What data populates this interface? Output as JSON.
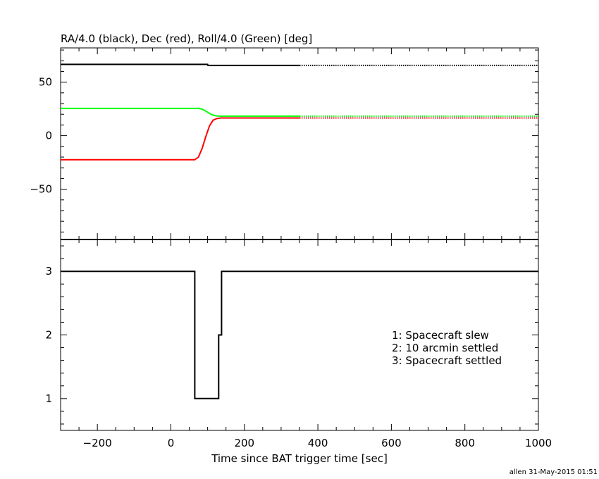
{
  "chart_data": [
    {
      "type": "line",
      "title": "RA/4.0 (black), Dec (red), Roll/4.0 (Green) [deg]",
      "xlim": [
        -300,
        1000
      ],
      "ylim": [
        -97,
        82
      ],
      "yticks": [
        -50,
        0,
        50
      ],
      "grid": false,
      "series": [
        {
          "name": "RA/4.0",
          "color": "#000000",
          "x": [
            -300,
            100,
            101,
            350
          ],
          "y": [
            66.6,
            66.6,
            65.6,
            65.6
          ],
          "dotted_continuation": {
            "x": [
              350,
              1000
            ],
            "y": [
              65.6,
              65.6
            ]
          }
        },
        {
          "name": "Dec",
          "color": "#ff0000",
          "x": [
            -300,
            65,
            75,
            85,
            95,
            105,
            115,
            125,
            135,
            350
          ],
          "y": [
            -22.5,
            -22.5,
            -20,
            -12,
            -1,
            9,
            14.5,
            16,
            16.5,
            16.5
          ],
          "dotted_continuation": {
            "x": [
              350,
              1000
            ],
            "y": [
              16.5,
              16.5
            ]
          }
        },
        {
          "name": "Roll/4.0",
          "color": "#00ff00",
          "x": [
            -300,
            75,
            85,
            95,
            105,
            115,
            125,
            135,
            350
          ],
          "y": [
            25.5,
            25.5,
            24.8,
            23,
            20.8,
            19.2,
            18.4,
            18.2,
            18.2
          ],
          "dotted_continuation": {
            "x": [
              350,
              1000
            ],
            "y": [
              18.2,
              18.2
            ]
          }
        }
      ]
    },
    {
      "type": "line",
      "xlim": [
        -300,
        1000
      ],
      "ylim": [
        0.5,
        3.5
      ],
      "yticks": [
        1,
        2,
        3
      ],
      "xticks": [
        -200,
        0,
        200,
        400,
        600,
        800,
        1000
      ],
      "xlabel": "Time since BAT trigger time [sec]",
      "grid": false,
      "step": true,
      "series": [
        {
          "x": [
            -300,
            65,
            65,
            130,
            130,
            138,
            138,
            1000
          ],
          "y": [
            3,
            3,
            1,
            1,
            2,
            2,
            3,
            3
          ],
          "color": "#000000"
        }
      ],
      "legend": {
        "placement": "lower-right",
        "entries": [
          "1: Spacecraft slew",
          "2: 10 arcmin settled",
          "3: Spacecraft settled"
        ]
      }
    }
  ],
  "footer": "allen 31-May-2015 01:51"
}
